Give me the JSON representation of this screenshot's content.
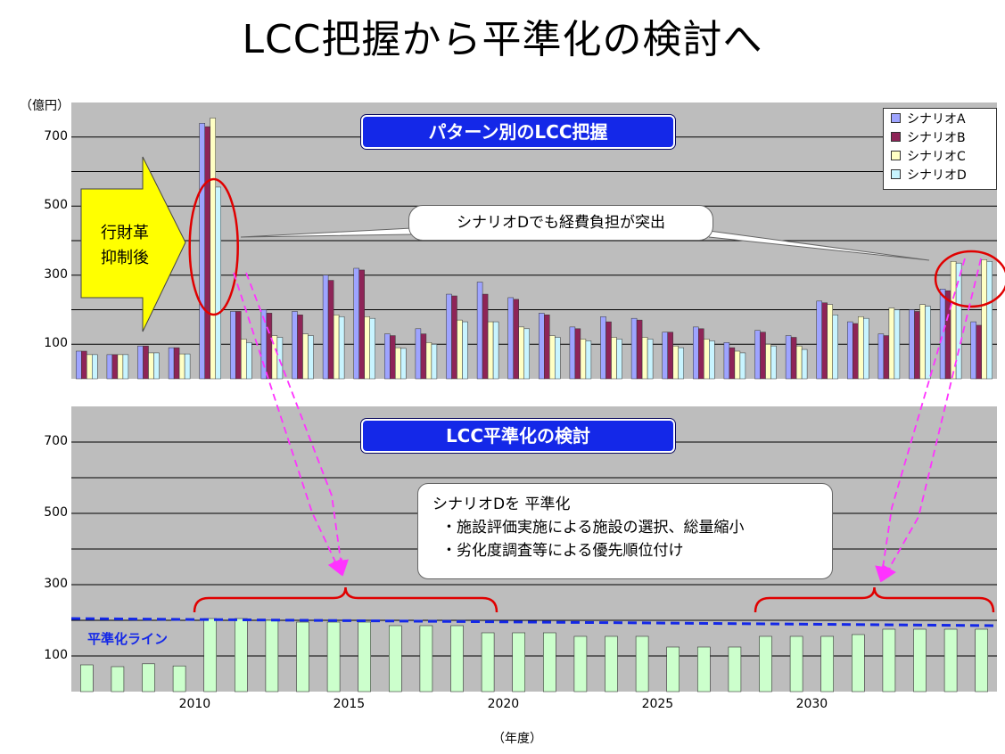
{
  "title": "LCC把握から平準化の検討へ",
  "y_unit": "（億円）",
  "x_unit": "（年度）",
  "colors": {
    "A": "#9ea4ff",
    "B": "#8e2457",
    "C": "#ffffc4",
    "D": "#c8f4ff",
    "level_bar": "#ccffcc",
    "plot_bg": "#bdbdbd",
    "banner": "#1428e8",
    "level_line": "#1428e8",
    "callout_red": "#e00000",
    "magenta": "#ff33ff"
  },
  "top_panel": {
    "banner": "パターン別のLCC把握",
    "arrow_text": [
      "行財革",
      "抑制後"
    ],
    "callout": "シナリオDでも経費負担が突出",
    "legend": [
      "シナリオA",
      "シナリオB",
      "シナリオC",
      "シナリオD"
    ]
  },
  "bottom_panel": {
    "banner": "LCC平準化の検討",
    "level_label": "平準化ライン",
    "callout_title": "シナリオDを 平準化",
    "callout_lines": [
      "・施設評価実施による施設の選択、総量縮小",
      "・劣化度調査等による優先順位付け"
    ]
  },
  "chart_data": [
    {
      "type": "bar",
      "title": "パターン別のLCC把握",
      "ylabel": "（億円）",
      "ylim": [
        0,
        800
      ],
      "yticks": [
        100,
        300,
        500,
        700
      ],
      "x": [
        2006,
        2007,
        2008,
        2009,
        2010,
        2011,
        2012,
        2013,
        2014,
        2015,
        2016,
        2017,
        2018,
        2019,
        2020,
        2021,
        2022,
        2023,
        2024,
        2025,
        2026,
        2027,
        2028,
        2029,
        2030,
        2031,
        2032,
        2033,
        2034,
        2035
      ],
      "series": [
        {
          "name": "シナリオA",
          "values": [
            80,
            70,
            95,
            90,
            740,
            195,
            200,
            195,
            300,
            320,
            130,
            145,
            245,
            280,
            235,
            190,
            150,
            180,
            175,
            135,
            150,
            105,
            140,
            125,
            225,
            165,
            130,
            200,
            260,
            165
          ]
        },
        {
          "name": "シナリオB",
          "values": [
            80,
            70,
            95,
            90,
            730,
            195,
            190,
            185,
            285,
            315,
            125,
            130,
            240,
            245,
            230,
            185,
            145,
            165,
            170,
            135,
            145,
            90,
            135,
            120,
            220,
            160,
            125,
            195,
            255,
            155
          ]
        },
        {
          "name": "シナリオC",
          "values": [
            70,
            70,
            75,
            72,
            755,
            115,
            125,
            130,
            185,
            180,
            90,
            105,
            170,
            165,
            150,
            125,
            115,
            120,
            120,
            95,
            115,
            80,
            100,
            95,
            215,
            180,
            205,
            215,
            340,
            345
          ]
        },
        {
          "name": "シナリオD",
          "values": [
            70,
            70,
            75,
            72,
            555,
            105,
            120,
            125,
            180,
            175,
            88,
            100,
            165,
            165,
            145,
            120,
            110,
            115,
            115,
            90,
            110,
            75,
            95,
            85,
            185,
            175,
            200,
            210,
            335,
            340
          ]
        }
      ]
    },
    {
      "type": "bar",
      "title": "LCC平準化の検討",
      "xlabel": "（年度）",
      "ylim": [
        0,
        800
      ],
      "yticks": [
        100,
        300,
        500,
        700
      ],
      "xticks": [
        2010,
        2015,
        2020,
        2025,
        2030
      ],
      "x": [
        2006,
        2007,
        2008,
        2009,
        2010,
        2011,
        2012,
        2013,
        2014,
        2015,
        2016,
        2017,
        2018,
        2019,
        2020,
        2021,
        2022,
        2023,
        2024,
        2025,
        2026,
        2027,
        2028,
        2029,
        2030,
        2031,
        2032,
        2033,
        2034,
        2035
      ],
      "series": [
        {
          "values": [
            75,
            70,
            78,
            72,
            205,
            205,
            200,
            195,
            195,
            195,
            185,
            185,
            185,
            165,
            165,
            165,
            155,
            155,
            155,
            125,
            125,
            125,
            155,
            155,
            155,
            160,
            175,
            175,
            175,
            175
          ]
        }
      ],
      "reference_line": {
        "label": "平準化ライン",
        "from": 205,
        "to": 185
      }
    }
  ]
}
